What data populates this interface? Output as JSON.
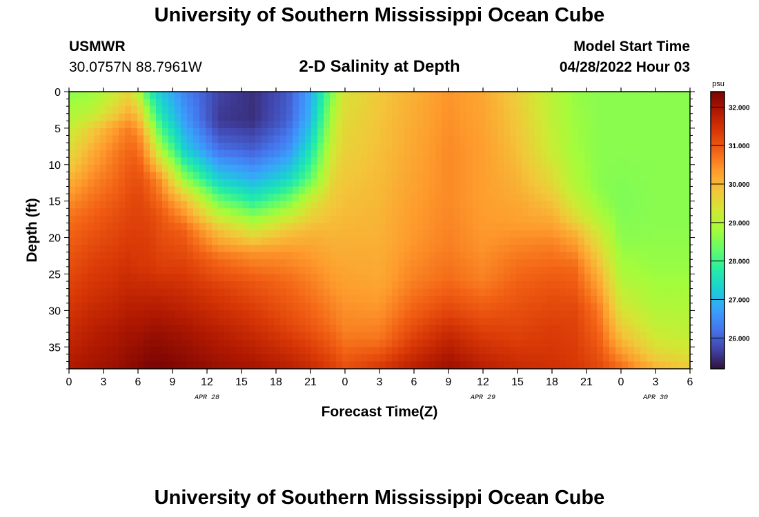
{
  "header": {
    "title": "University of Southern Mississippi Ocean Cube",
    "station": "USMWR",
    "coords": "30.0757N  88.7961W",
    "subtitle": "2-D Salinity at Depth",
    "start_label": "Model Start Time",
    "start_value": "04/28/2022 Hour 03"
  },
  "footer": {
    "title": "University of Southern Mississippi Ocean Cube"
  },
  "chart_data": {
    "type": "heatmap",
    "title": "2-D Salinity at Depth",
    "xlabel": "Forecast Time(Z)",
    "ylabel": "Depth (ft)",
    "x_hours_range": [
      0,
      54
    ],
    "x_tick_labels": [
      "0",
      "3",
      "6",
      "9",
      "12",
      "15",
      "18",
      "21",
      "0",
      "3",
      "6",
      "9",
      "12",
      "15",
      "18",
      "21",
      "0",
      "3",
      "6"
    ],
    "date_labels": [
      {
        "label": "APR 28",
        "hour": 12
      },
      {
        "label": "APR 29",
        "hour": 36
      },
      {
        "label": "APR 30",
        "hour": 51
      }
    ],
    "ylim": [
      0,
      38
    ],
    "y_ticks": [
      0,
      5,
      10,
      15,
      20,
      25,
      30,
      35
    ],
    "colorbar": {
      "unit": "psu",
      "range": [
        25.2,
        32.4
      ],
      "ticks": [
        "32.000",
        "31.000",
        "30.000",
        "29.000",
        "28.000",
        "27.000",
        "26.000"
      ],
      "tick_values": [
        32,
        31,
        30,
        29,
        28,
        27,
        26
      ]
    },
    "colors": {
      "min": "#2b1b4a",
      "stops": [
        "#30123b",
        "#4145ab",
        "#4675ed",
        "#39a2fc",
        "#1bcfd4",
        "#24eca6",
        "#61fc6c",
        "#a4fc3b",
        "#d1e834",
        "#f3c63a",
        "#fe9b2d",
        "#f36315",
        "#d93806",
        "#b11901",
        "#7a0403"
      ]
    },
    "depth_profiles": [
      {
        "hour": 0,
        "points": [
          [
            0,
            28.6
          ],
          [
            3,
            28.9
          ],
          [
            6,
            29.3
          ],
          [
            10,
            29.7
          ],
          [
            13,
            30.2
          ],
          [
            17,
            30.7
          ],
          [
            22,
            31.0
          ],
          [
            28,
            31.3
          ],
          [
            33,
            31.6
          ],
          [
            38,
            31.9
          ]
        ]
      },
      {
        "hour": 2,
        "points": [
          [
            0,
            28.7
          ],
          [
            3,
            29.1
          ],
          [
            5,
            29.7
          ],
          [
            8,
            30.1
          ],
          [
            12,
            30.5
          ],
          [
            17,
            30.9
          ],
          [
            22,
            31.2
          ],
          [
            28,
            31.5
          ],
          [
            33,
            31.8
          ],
          [
            38,
            32.0
          ]
        ]
      },
      {
        "hour": 4,
        "points": [
          [
            0,
            29.2
          ],
          [
            3,
            29.7
          ],
          [
            5,
            30.3
          ],
          [
            8,
            30.6
          ],
          [
            12,
            30.8
          ],
          [
            17,
            31.1
          ],
          [
            22,
            31.3
          ],
          [
            28,
            31.6
          ],
          [
            33,
            31.9
          ],
          [
            38,
            32.1
          ]
        ]
      },
      {
        "hour": 5,
        "points": [
          [
            0,
            29.6
          ],
          [
            3,
            30.1
          ],
          [
            5,
            30.6
          ],
          [
            8,
            30.8
          ],
          [
            12,
            31.0
          ],
          [
            17,
            31.2
          ],
          [
            22,
            31.4
          ],
          [
            28,
            31.7
          ],
          [
            33,
            32.0
          ],
          [
            38,
            32.2
          ]
        ]
      },
      {
        "hour": 6,
        "points": [
          [
            0,
            29.0
          ],
          [
            3,
            29.9
          ],
          [
            6,
            30.6
          ],
          [
            10,
            31.0
          ],
          [
            14,
            31.2
          ],
          [
            19,
            31.3
          ],
          [
            24,
            31.4
          ],
          [
            28,
            31.7
          ],
          [
            33,
            32.0
          ],
          [
            38,
            32.3
          ]
        ]
      },
      {
        "hour": 7,
        "points": [
          [
            0,
            27.8
          ],
          [
            3,
            28.6
          ],
          [
            6,
            29.6
          ],
          [
            9,
            30.2
          ],
          [
            12,
            30.8
          ],
          [
            17,
            31.2
          ],
          [
            24,
            31.4
          ],
          [
            28,
            31.7
          ],
          [
            33,
            32.1
          ],
          [
            38,
            32.4
          ]
        ]
      },
      {
        "hour": 8,
        "points": [
          [
            0,
            27.2
          ],
          [
            3,
            27.6
          ],
          [
            6,
            28.3
          ],
          [
            9,
            29.3
          ],
          [
            12,
            30.4
          ],
          [
            17,
            31.0
          ],
          [
            24,
            31.3
          ],
          [
            28,
            31.7
          ],
          [
            33,
            32.1
          ],
          [
            38,
            32.4
          ]
        ]
      },
      {
        "hour": 10,
        "points": [
          [
            0,
            26.4
          ],
          [
            4,
            26.7
          ],
          [
            8,
            27.3
          ],
          [
            12,
            28.7
          ],
          [
            15,
            30.0
          ],
          [
            19,
            30.9
          ],
          [
            24,
            31.3
          ],
          [
            28,
            31.6
          ],
          [
            33,
            32.0
          ],
          [
            38,
            32.3
          ]
        ]
      },
      {
        "hour": 13,
        "points": [
          [
            0,
            25.7
          ],
          [
            4,
            25.6
          ],
          [
            8,
            26.2
          ],
          [
            12,
            27.3
          ],
          [
            15,
            28.4
          ],
          [
            19,
            29.9
          ],
          [
            23,
            30.8
          ],
          [
            27,
            31.3
          ],
          [
            33,
            31.8
          ],
          [
            38,
            32.1
          ]
        ]
      },
      {
        "hour": 16,
        "points": [
          [
            0,
            25.5
          ],
          [
            4,
            25.5
          ],
          [
            8,
            26.0
          ],
          [
            12,
            26.9
          ],
          [
            15,
            27.8
          ],
          [
            19,
            29.3
          ],
          [
            22,
            30.4
          ],
          [
            26,
            31.0
          ],
          [
            32,
            31.5
          ],
          [
            38,
            32.0
          ]
        ]
      },
      {
        "hour": 19,
        "points": [
          [
            0,
            25.9
          ],
          [
            4,
            26.0
          ],
          [
            8,
            26.5
          ],
          [
            12,
            27.4
          ],
          [
            15,
            28.4
          ],
          [
            19,
            29.8
          ],
          [
            22,
            30.4
          ],
          [
            26,
            30.8
          ],
          [
            32,
            31.2
          ],
          [
            38,
            31.8
          ]
        ]
      },
      {
        "hour": 21,
        "points": [
          [
            0,
            26.8
          ],
          [
            4,
            27.0
          ],
          [
            8,
            27.6
          ],
          [
            12,
            28.3
          ],
          [
            15,
            29.3
          ],
          [
            19,
            30.0
          ],
          [
            22,
            30.3
          ],
          [
            26,
            30.6
          ],
          [
            32,
            31.0
          ],
          [
            38,
            31.6
          ]
        ]
      },
      {
        "hour": 23,
        "points": [
          [
            0,
            28.6
          ],
          [
            4,
            29.0
          ],
          [
            8,
            29.3
          ],
          [
            12,
            29.6
          ],
          [
            15,
            29.8
          ],
          [
            19,
            30.0
          ],
          [
            23,
            30.2
          ],
          [
            27,
            30.4
          ],
          [
            32,
            30.7
          ],
          [
            38,
            31.3
          ]
        ]
      },
      {
        "hour": 24,
        "points": [
          [
            0,
            29.4
          ],
          [
            6,
            29.6
          ],
          [
            12,
            29.8
          ],
          [
            18,
            30.0
          ],
          [
            24,
            30.2
          ],
          [
            29,
            30.4
          ],
          [
            33,
            30.6
          ],
          [
            38,
            31.1
          ]
        ]
      },
      {
        "hour": 27,
        "points": [
          [
            0,
            29.8
          ],
          [
            8,
            29.9
          ],
          [
            15,
            30.0
          ],
          [
            21,
            30.1
          ],
          [
            26,
            30.2
          ],
          [
            30,
            30.4
          ],
          [
            34,
            30.7
          ],
          [
            38,
            31.4
          ]
        ]
      },
      {
        "hour": 30,
        "points": [
          [
            0,
            30.1
          ],
          [
            8,
            30.2
          ],
          [
            15,
            30.3
          ],
          [
            21,
            30.4
          ],
          [
            26,
            30.6
          ],
          [
            30,
            30.9
          ],
          [
            34,
            31.3
          ],
          [
            38,
            31.8
          ]
        ]
      },
      {
        "hour": 33,
        "points": [
          [
            0,
            30.4
          ],
          [
            8,
            30.5
          ],
          [
            15,
            30.5
          ],
          [
            21,
            30.6
          ],
          [
            26,
            30.8
          ],
          [
            30,
            31.2
          ],
          [
            34,
            31.7
          ],
          [
            38,
            32.1
          ]
        ]
      },
      {
        "hour": 36,
        "points": [
          [
            0,
            30.2
          ],
          [
            8,
            30.3
          ],
          [
            15,
            30.3
          ],
          [
            21,
            30.4
          ],
          [
            26,
            30.6
          ],
          [
            30,
            31.0
          ],
          [
            34,
            31.4
          ],
          [
            38,
            31.8
          ]
        ]
      },
      {
        "hour": 39,
        "points": [
          [
            0,
            29.7
          ],
          [
            8,
            29.9
          ],
          [
            13,
            30.1
          ],
          [
            18,
            30.3
          ],
          [
            23,
            30.7
          ],
          [
            28,
            31.0
          ],
          [
            34,
            31.3
          ],
          [
            38,
            31.6
          ]
        ]
      },
      {
        "hour": 42,
        "points": [
          [
            0,
            29.0
          ],
          [
            8,
            29.2
          ],
          [
            13,
            29.6
          ],
          [
            17,
            30.1
          ],
          [
            21,
            30.6
          ],
          [
            26,
            31.0
          ],
          [
            32,
            31.3
          ],
          [
            38,
            31.5
          ]
        ]
      },
      {
        "hour": 44,
        "points": [
          [
            0,
            28.7
          ],
          [
            8,
            28.8
          ],
          [
            13,
            29.0
          ],
          [
            17,
            29.5
          ],
          [
            20,
            30.2
          ],
          [
            24,
            30.8
          ],
          [
            30,
            31.2
          ],
          [
            38,
            31.4
          ]
        ]
      },
      {
        "hour": 46,
        "points": [
          [
            0,
            28.6
          ],
          [
            8,
            28.6
          ],
          [
            13,
            28.6
          ],
          [
            16,
            28.8
          ],
          [
            20,
            29.4
          ],
          [
            25,
            30.1
          ],
          [
            30,
            30.7
          ],
          [
            38,
            31.2
          ]
        ]
      },
      {
        "hour": 48,
        "points": [
          [
            0,
            28.6
          ],
          [
            8,
            28.6
          ],
          [
            15,
            28.5
          ],
          [
            20,
            28.6
          ],
          [
            25,
            28.9
          ],
          [
            30,
            29.4
          ],
          [
            34,
            30.0
          ],
          [
            38,
            30.8
          ]
        ]
      },
      {
        "hour": 51,
        "points": [
          [
            0,
            28.6
          ],
          [
            10,
            28.6
          ],
          [
            18,
            28.6
          ],
          [
            24,
            28.7
          ],
          [
            29,
            28.9
          ],
          [
            33,
            29.2
          ],
          [
            36,
            29.6
          ],
          [
            38,
            30.1
          ]
        ]
      },
      {
        "hour": 54,
        "points": [
          [
            0,
            28.6
          ],
          [
            10,
            28.6
          ],
          [
            18,
            28.6
          ],
          [
            24,
            28.7
          ],
          [
            29,
            28.9
          ],
          [
            33,
            29.1
          ],
          [
            36,
            29.4
          ],
          [
            38,
            29.8
          ]
        ]
      }
    ]
  }
}
